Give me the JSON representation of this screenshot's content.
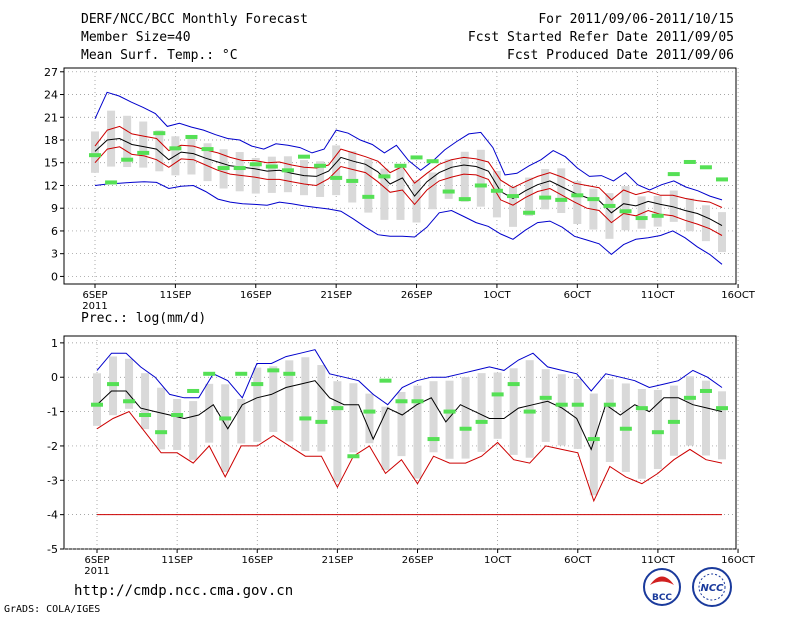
{
  "header": {
    "title": "DERF/NCC/BCC Monthly Forecast",
    "member_size": "Member Size=40",
    "variable_temp": "Mean Surf. Temp.: °C",
    "forecast_period": "For 2011/09/06-2011/10/15",
    "started_refer": "Fcst Started Refer Date 2011/09/05",
    "produced": "Fcst Produced Date 2011/09/06"
  },
  "footer": {
    "url": "http://cmdp.ncc.cma.gov.cn",
    "grads": "GrADS: COLA/IGES",
    "logo1": "BCC",
    "logo2": "NCC"
  },
  "colors": {
    "envelope": "#0000cc",
    "band": "#cc0000",
    "mean": "#000000",
    "marker": "#55e055",
    "box": "#d9d9d9",
    "grid": "#888888"
  },
  "chart_data": [
    {
      "type": "line",
      "title": "Mean Surf. Temp.: °C",
      "xlabel": "",
      "ylabel": "°C",
      "ylim": [
        -1,
        27.5
      ],
      "yticks": [
        "0",
        "3",
        "6",
        "9",
        "12",
        "15",
        "18",
        "21",
        "24",
        "27"
      ],
      "xticks": [
        "6SEP",
        "11SEP",
        "16SEP",
        "21SEP",
        "26SEP",
        "1OCT",
        "6OCT",
        "11OCT",
        "16OCT"
      ],
      "xticks_display": [
        "6SEP",
        "11SEP",
        "16SEP",
        "21SEP",
        "26SEP",
        "1OCT",
        "6OCT",
        "11OCT",
        "16OCT"
      ],
      "year_label": "2011",
      "days": 40,
      "series": [
        {
          "name": "max",
          "values": [
            20.8,
            24.3,
            23.8,
            23.0,
            22.3,
            21.5,
            19.8,
            20.2,
            19.7,
            19.3,
            18.7,
            18.2,
            18.0,
            17.2,
            16.8,
            17.5,
            17.3,
            17.0,
            16.3,
            16.8,
            19.3,
            18.9,
            18.0,
            17.4,
            16.3,
            17.3,
            15.3,
            14.0,
            15.2,
            16.7,
            17.8,
            18.8,
            19.0,
            17.0,
            13.4,
            13.6,
            14.6,
            15.4,
            16.6,
            15.8,
            14.3,
            13.2,
            13.3,
            12.6,
            13.7,
            12.1,
            11.4,
            12.1,
            12.6,
            11.8,
            11.3,
            10.6,
            10.1
          ]
        },
        {
          "name": "upper",
          "values": [
            17.2,
            19.3,
            19.8,
            18.8,
            18.5,
            18.2,
            16.6,
            17.3,
            17.2,
            16.7,
            16.3,
            15.7,
            15.3,
            15.3,
            15.0,
            15.1,
            14.7,
            14.4,
            14.3,
            14.7,
            16.8,
            16.3,
            15.8,
            15.2,
            13.7,
            14.5,
            12.3,
            13.6,
            14.8,
            15.4,
            15.7,
            15.5,
            15.1,
            12.7,
            11.7,
            12.5,
            13.2,
            13.7,
            13.1,
            12.3,
            12.0,
            11.7,
            10.1,
            11.4,
            10.8,
            11.2,
            10.7,
            10.7,
            10.3,
            10.0,
            9.8,
            9.1
          ]
        },
        {
          "name": "mean",
          "values": [
            16.5,
            18.0,
            18.2,
            17.4,
            17.1,
            16.8,
            15.4,
            16.4,
            16.2,
            15.6,
            15.1,
            14.6,
            14.4,
            14.2,
            13.9,
            14.0,
            13.6,
            13.3,
            13.2,
            13.9,
            15.7,
            15.2,
            14.8,
            13.8,
            12.2,
            13.0,
            10.6,
            12.5,
            13.7,
            14.4,
            14.7,
            14.5,
            13.9,
            11.2,
            10.3,
            11.3,
            12.1,
            12.6,
            11.8,
            11.0,
            10.4,
            10.0,
            8.4,
            9.6,
            9.3,
            9.9,
            9.5,
            9.2,
            8.7,
            8.3,
            7.6,
            6.7
          ]
        },
        {
          "name": "lower",
          "values": [
            15.0,
            16.8,
            17.1,
            16.1,
            15.9,
            15.4,
            14.4,
            15.5,
            15.4,
            14.7,
            14.0,
            13.5,
            13.3,
            13.1,
            12.8,
            12.8,
            12.5,
            12.2,
            12.0,
            12.9,
            14.5,
            14.1,
            13.7,
            12.5,
            11.1,
            11.4,
            9.5,
            11.4,
            12.6,
            13.1,
            13.5,
            13.4,
            12.8,
            10.1,
            9.4,
            10.4,
            11.2,
            11.6,
            10.7,
            9.8,
            9.0,
            8.7,
            7.1,
            8.3,
            8.0,
            8.7,
            8.2,
            8.0,
            7.4,
            6.9,
            6.3,
            5.4
          ]
        },
        {
          "name": "min",
          "values": [
            12.0,
            12.2,
            12.3,
            12.4,
            12.5,
            12.4,
            11.6,
            11.9,
            12.0,
            11.2,
            10.2,
            9.8,
            9.6,
            9.5,
            9.4,
            9.8,
            9.6,
            9.3,
            9.1,
            8.9,
            8.6,
            7.6,
            6.5,
            5.5,
            5.3,
            5.3,
            5.2,
            6.5,
            8.4,
            8.7,
            7.9,
            7.1,
            6.6,
            5.6,
            4.9,
            6.1,
            7.1,
            7.3,
            6.5,
            5.3,
            4.8,
            4.3,
            2.9,
            4.2,
            4.9,
            5.1,
            5.4,
            6.0,
            5.1,
            3.9,
            2.9,
            1.6
          ]
        }
      ],
      "markers": [
        16.0,
        12.4,
        15.4,
        16.3,
        18.9,
        16.9,
        18.4,
        16.8,
        14.3,
        14.3,
        14.8,
        14.5,
        14.0,
        15.8,
        14.6,
        13.0,
        12.6,
        10.5,
        13.2,
        14.6,
        15.7,
        15.2,
        11.2,
        10.2,
        12.0,
        11.3,
        10.6,
        8.4,
        10.4,
        10.1,
        10.7,
        10.2,
        9.3,
        8.6,
        7.7,
        8.0,
        13.5,
        15.1,
        14.4,
        12.8
      ]
    },
    {
      "type": "line",
      "title": "Prec.: log(mm/d)",
      "xlabel": "",
      "ylabel": "log(mm/d)",
      "ylim": [
        -5,
        1.2
      ],
      "yticks": [
        "1",
        "0",
        "-1",
        "-2",
        "-3",
        "-4",
        "-5"
      ],
      "xticks": [
        "6SEP",
        "11SEP",
        "16SEP",
        "21SEP",
        "26SEP",
        "1OCT",
        "6OCT",
        "11OCT",
        "16OCT"
      ],
      "xticks_display": [
        "6SEP",
        "11SEP",
        "16SEP",
        "21SEP",
        "26SEP",
        "1OCT",
        "6OCT",
        "11OCT",
        "16OCT"
      ],
      "year_label": "2011",
      "days": 40,
      "series": [
        {
          "name": "max",
          "values": [
            0.2,
            0.7,
            0.7,
            0.3,
            0.0,
            -0.5,
            -0.6,
            -0.6,
            0.1,
            -0.1,
            -0.6,
            0.4,
            0.4,
            0.6,
            0.7,
            0.8,
            0.1,
            0.0,
            -0.1,
            -0.5,
            -0.8,
            -0.3,
            -0.1,
            0.0,
            0.0,
            0.1,
            0.2,
            0.3,
            0.2,
            0.5,
            0.7,
            0.3,
            0.2,
            0.1,
            -0.4,
            0.1,
            0.0,
            -0.1,
            -0.3,
            -0.2,
            -0.1,
            0.2,
            0.0,
            -0.3
          ]
        },
        {
          "name": "mean",
          "values": [
            -0.8,
            -0.4,
            -0.4,
            -0.9,
            -1.0,
            -1.1,
            -1.2,
            -1.1,
            -0.8,
            -1.5,
            -0.8,
            -0.6,
            -0.5,
            -0.3,
            -0.2,
            -0.1,
            -0.6,
            -0.8,
            -0.8,
            -1.8,
            -0.9,
            -1.1,
            -0.8,
            -0.6,
            -1.3,
            -0.8,
            -1.0,
            -1.2,
            -1.2,
            -0.9,
            -0.8,
            -0.7,
            -0.9,
            -1.2,
            -2.1,
            -0.8,
            -1.1,
            -0.8,
            -1.0,
            -0.6,
            -0.6,
            -0.8,
            -0.9,
            -1.0
          ]
        },
        {
          "name": "min",
          "values": [
            -1.5,
            -1.2,
            -1.0,
            -1.6,
            -2.2,
            -2.2,
            -2.5,
            -2.0,
            -2.9,
            -2.0,
            -2.0,
            -1.7,
            -2.0,
            -2.3,
            -2.3,
            -3.2,
            -2.3,
            -2.0,
            -2.8,
            -2.4,
            -3.1,
            -2.3,
            -2.5,
            -2.5,
            -2.3,
            -1.9,
            -2.4,
            -2.5,
            -2.0,
            -2.1,
            -2.2,
            -3.6,
            -2.6,
            -2.9,
            -3.1,
            -2.8,
            -2.4,
            -2.1,
            -2.4,
            -2.5
          ]
        },
        {
          "name": "floor",
          "values": [
            -4.0,
            -4.0
          ]
        }
      ],
      "markers": [
        -0.8,
        -0.2,
        -0.7,
        -1.1,
        -1.6,
        -1.1,
        -0.4,
        0.1,
        -1.2,
        0.1,
        -0.2,
        0.2,
        0.1,
        -1.2,
        -1.3,
        -0.9,
        -2.3,
        -1.0,
        -0.1,
        -0.7,
        -0.7,
        -1.8,
        -1.0,
        -1.5,
        -1.3,
        -0.5,
        -0.2,
        -1.0,
        -0.6,
        -0.8,
        -0.8,
        -1.8,
        -0.8,
        -1.5,
        -0.9,
        -1.6,
        -1.3,
        -0.6,
        -0.4,
        -0.9
      ]
    }
  ]
}
